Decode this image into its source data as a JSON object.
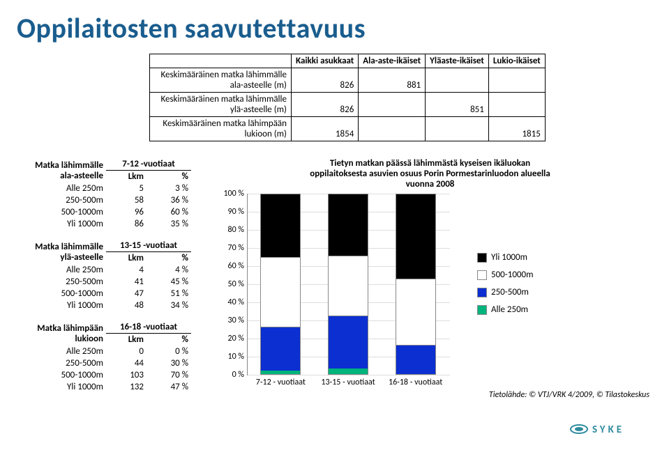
{
  "title": "Oppilaitosten saavutettavuus",
  "overview": {
    "columns": [
      "Kaikki asukkaat",
      "Ala-aste-ikäiset",
      "Yläaste-ikäiset",
      "Lukio-ikäiset"
    ],
    "rows": [
      {
        "label": "Keskimääräinen matka lähimmälle ala-asteelle (m)",
        "values": [
          "826",
          "881",
          "",
          ""
        ]
      },
      {
        "label": "Keskimääräinen matka lähimmälle ylä-asteelle (m)",
        "values": [
          "826",
          "",
          "851",
          ""
        ]
      },
      {
        "label": "Keskimääräinen matka lähimpään lukioon (m)",
        "values": [
          "1854",
          "",
          "",
          "1815"
        ]
      }
    ]
  },
  "dist_tables": [
    {
      "group": "Matka lähimmälle ala-asteelle",
      "age": "7-12 -vuotiaat",
      "col1": "Lkm",
      "col2": "%",
      "rows": [
        {
          "label": "Alle 250m",
          "a": "5",
          "b": "3 %"
        },
        {
          "label": "250-500m",
          "a": "58",
          "b": "36 %"
        },
        {
          "label": "500-1000m",
          "a": "96",
          "b": "60 %"
        },
        {
          "label": "Yli 1000m",
          "a": "86",
          "b": "35 %"
        }
      ]
    },
    {
      "group": "Matka lähimmälle ylä-asteelle",
      "age": "13-15 -vuotiaat",
      "col1": "Lkm",
      "col2": "%",
      "rows": [
        {
          "label": "Alle 250m",
          "a": "4",
          "b": "4 %"
        },
        {
          "label": "250-500m",
          "a": "41",
          "b": "45 %"
        },
        {
          "label": "500-1000m",
          "a": "47",
          "b": "51 %"
        },
        {
          "label": "Yli 1000m",
          "a": "48",
          "b": "34 %"
        }
      ]
    },
    {
      "group": "Matka lähimpään lukioon",
      "age": "16-18 -vuotiaat",
      "col1": "Lkm",
      "col2": "%",
      "rows": [
        {
          "label": "Alle 250m",
          "a": "0",
          "b": "0 %"
        },
        {
          "label": "250-500m",
          "a": "44",
          "b": "30 %"
        },
        {
          "label": "500-1000m",
          "a": "103",
          "b": "70 %"
        },
        {
          "label": "Yli 1000m",
          "a": "132",
          "b": "47 %"
        }
      ]
    }
  ],
  "chart": {
    "type": "stacked-bar-100",
    "title": "Tietyn matkan päässä lähimmästä kyseisen ikäluokan oppilaitoksesta asuvien osuus Porin Pormestarinluodon alueella vuonna 2008",
    "categories": [
      "7-12 - vuotiaat",
      "13-15 - vuotiaat",
      "16-18 - vuotiaat"
    ],
    "series": [
      {
        "name": "Yli 1000m",
        "color": "#000000",
        "values": [
          35,
          34,
          47
        ]
      },
      {
        "name": "500-1000m",
        "color": "#ffffff",
        "values": [
          39,
          34,
          37
        ]
      },
      {
        "name": "250-500m",
        "color": "#0b2fd0",
        "values": [
          24,
          29,
          16
        ]
      },
      {
        "name": "Alle 250m",
        "color": "#00b47c",
        "values": [
          2,
          3,
          0
        ]
      }
    ],
    "ylim": [
      0,
      100
    ],
    "ytick_step": 10,
    "ytick_suffix": " %",
    "grid_color": "#dddddd",
    "axis_color": "#888888",
    "label_fontsize": 12,
    "title_fontsize": 13,
    "bar_border": "#888888"
  },
  "source": "Tietolähde: © VTJ/VRK 4/2009, © Tilastokeskus",
  "logo_text": "SYKE",
  "logo_color": "#2e8b9e"
}
